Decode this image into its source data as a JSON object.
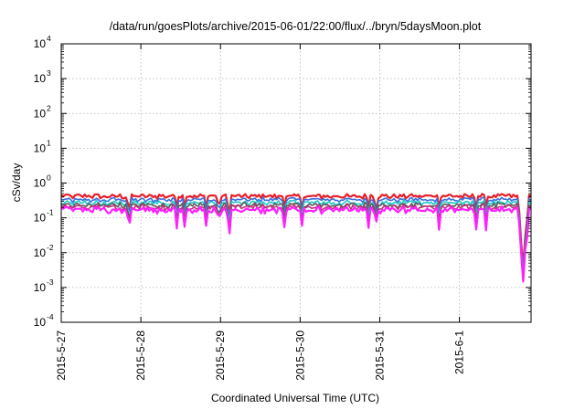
{
  "chart_data": {
    "type": "line",
    "title": "/data/run/goesPlots/archive/2015-06-01/22:00/flux/../bryn/5daysMoon.plot",
    "xlabel": "Coordinated Universal Time (UTC)",
    "ylabel": "cSv/day",
    "yscale": "log",
    "ylim_exp": [
      -4,
      4
    ],
    "y_ticks": [
      {
        "base": "10",
        "exp": "4"
      },
      {
        "base": "10",
        "exp": "3"
      },
      {
        "base": "10",
        "exp": "2"
      },
      {
        "base": "10",
        "exp": "1"
      },
      {
        "base": "10",
        "exp": "0"
      },
      {
        "base": "10",
        "exp": "-1"
      },
      {
        "base": "10",
        "exp": "-2"
      },
      {
        "base": "10",
        "exp": "-3"
      },
      {
        "base": "10",
        "exp": "-4"
      }
    ],
    "x_ticks": [
      "2015-5-27",
      "2015-5-28",
      "2015-5-29",
      "2015-5-30",
      "2015-5-31",
      "2015-6-1"
    ],
    "xlim_days": [
      0,
      5.9
    ],
    "grid": true,
    "series": [
      {
        "color": "#e8202a",
        "base": 0.42
      },
      {
        "color": "#3a6ee0",
        "base": 0.33
      },
      {
        "color": "#20c8c8",
        "base": 0.27
      },
      {
        "color": "#5a5a5a",
        "base": 0.23
      },
      {
        "color": "#c03078",
        "base": 0.2
      },
      {
        "color": "#ff20ff",
        "base": 0.17
      }
    ],
    "dips": [
      {
        "day": 0.85,
        "value": 0.04
      },
      {
        "day": 1.98,
        "value": 0.05
      },
      {
        "day": 2.1,
        "value": 0.06
      },
      {
        "day": 3.95,
        "value": 0.06
      },
      {
        "day": 5.8,
        "value": 0.0015
      }
    ]
  }
}
